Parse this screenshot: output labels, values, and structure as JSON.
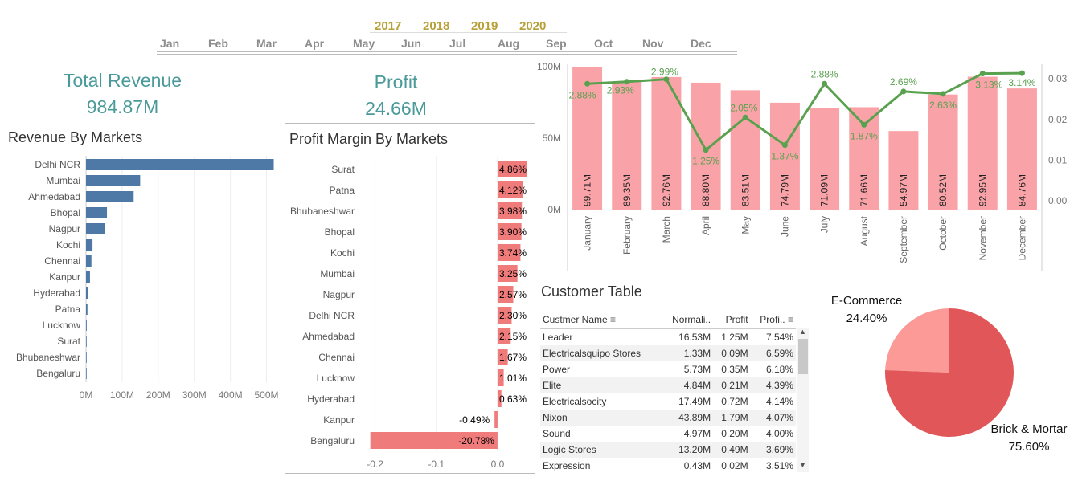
{
  "filters": {
    "years": [
      "2017",
      "2018",
      "2019",
      "2020"
    ],
    "months": [
      "Jan",
      "Feb",
      "Mar",
      "Apr",
      "May",
      "Jun",
      "Jul",
      "Aug",
      "Sep",
      "Oct",
      "Nov",
      "Dec"
    ]
  },
  "kpis": {
    "revenue_title": "Total Revenue",
    "revenue_value": "984.87M",
    "profit_title": "Profit",
    "profit_value": "24.66M"
  },
  "colors": {
    "revenue_bar": "#4e79a7",
    "margin_bar": "#f07b7b",
    "monthly_bar": "#f9a3a8",
    "line": "#59a14f",
    "pie_ecommerce": "#fb9a96",
    "pie_brick": "#e15759",
    "kpi": "#4a9a9a",
    "year": "#b8a038"
  },
  "chart_data": [
    {
      "type": "bar",
      "title": "Revenue By Markets",
      "orientation": "horizontal",
      "categories": [
        "Delhi NCR",
        "Mumbai",
        "Ahmedabad",
        "Bhopal",
        "Nagpur",
        "Kochi",
        "Chennai",
        "Kanpur",
        "Hyderabad",
        "Patna",
        "Lucknow",
        "Surat",
        "Bhubaneshwar",
        "Bengaluru"
      ],
      "values": [
        520,
        150,
        132,
        58,
        52,
        18,
        15,
        11,
        6,
        4,
        2,
        1,
        0.5,
        0.3
      ],
      "unit": "M",
      "xticks": [
        "0M",
        "100M",
        "200M",
        "300M",
        "400M",
        "500M"
      ],
      "xlim": [
        0,
        530
      ],
      "grid": true
    },
    {
      "type": "bar",
      "title": "Profit Margin By Markets",
      "orientation": "horizontal",
      "categories": [
        "Surat",
        "Patna",
        "Bhubaneshwar",
        "Bhopal",
        "Kochi",
        "Mumbai",
        "Nagpur",
        "Delhi NCR",
        "Ahmedabad",
        "Chennai",
        "Lucknow",
        "Hyderabad",
        "Kanpur",
        "Bengaluru"
      ],
      "values": [
        0.0486,
        0.0412,
        0.0398,
        0.039,
        0.0374,
        0.0325,
        0.0257,
        0.023,
        0.0215,
        0.0167,
        0.0101,
        0.0063,
        -0.0049,
        -0.2078
      ],
      "labels": [
        "4.86%",
        "4.12%",
        "3.98%",
        "3.90%",
        "3.74%",
        "3.25%",
        "2.57%",
        "2.30%",
        "2.15%",
        "1.67%",
        "1.01%",
        "0.63%",
        "-0.49%",
        "-20.78%"
      ],
      "xticks": [
        "-0.2",
        "-0.1",
        "0.0"
      ],
      "xlim": [
        -0.21,
        0.05
      ],
      "grid": true
    },
    {
      "type": "bar",
      "title": "",
      "categories": [
        "January",
        "February",
        "March",
        "April",
        "May",
        "June",
        "July",
        "August",
        "September",
        "October",
        "November",
        "December"
      ],
      "series": [
        {
          "kind": "bar",
          "axis": "left",
          "values": [
            99.71,
            89.35,
            92.76,
            88.8,
            83.51,
            74.79,
            71.09,
            71.66,
            54.97,
            80.52,
            92.95,
            84.76
          ],
          "labels": [
            "99.71M",
            "89.35M",
            "92.76M",
            "88.80M",
            "83.51M",
            "74.79M",
            "71.09M",
            "71.66M",
            "54.97M",
            "80.52M",
            "92.95M",
            "84.76M"
          ]
        },
        {
          "kind": "line",
          "axis": "right",
          "values": [
            0.0288,
            0.0293,
            0.0299,
            0.0125,
            0.0205,
            0.0137,
            0.0288,
            0.0187,
            0.0269,
            0.0263,
            0.0313,
            0.0314
          ],
          "labels": [
            "2.88%",
            "2.93%",
            "2.99%",
            "1.25%",
            "2.05%",
            "1.37%",
            "2.88%",
            "1.87%",
            "2.69%",
            "2.63%",
            "3.13%",
            "3.14%"
          ]
        }
      ],
      "yticks_left": [
        "100M",
        "50M",
        "0M"
      ],
      "ylim_left": [
        0,
        100
      ],
      "yticks_right": [
        "0.03",
        "0.02",
        "0.01",
        "0.00"
      ],
      "ylim_right": [
        0,
        0.033
      ]
    },
    {
      "type": "pie",
      "title": "",
      "slices": [
        {
          "name": "E-Commerce",
          "value": 24.4,
          "label": "24.40%"
        },
        {
          "name": "Brick & Mortar",
          "value": 75.6,
          "label": "75.60%"
        }
      ]
    }
  ],
  "customer_table": {
    "title": "Customer Table",
    "columns": [
      "Custmer Name",
      "Normali..",
      "Profit",
      "Profi.."
    ],
    "rows": [
      [
        "Leader",
        "16.53M",
        "1.25M",
        "7.54%"
      ],
      [
        "Electricalsquipo Stores",
        "1.33M",
        "0.09M",
        "6.59%"
      ],
      [
        "Power",
        "5.73M",
        "0.35M",
        "6.18%"
      ],
      [
        "Elite",
        "4.84M",
        "0.21M",
        "4.39%"
      ],
      [
        "Electricalsocity",
        "17.49M",
        "0.72M",
        "4.14%"
      ],
      [
        "Nixon",
        "43.89M",
        "1.79M",
        "4.07%"
      ],
      [
        "Sound",
        "4.97M",
        "0.20M",
        "4.00%"
      ],
      [
        "Logic Stores",
        "13.20M",
        "0.49M",
        "3.69%"
      ],
      [
        "Expression",
        "0.43M",
        "0.02M",
        "3.51%"
      ]
    ]
  }
}
